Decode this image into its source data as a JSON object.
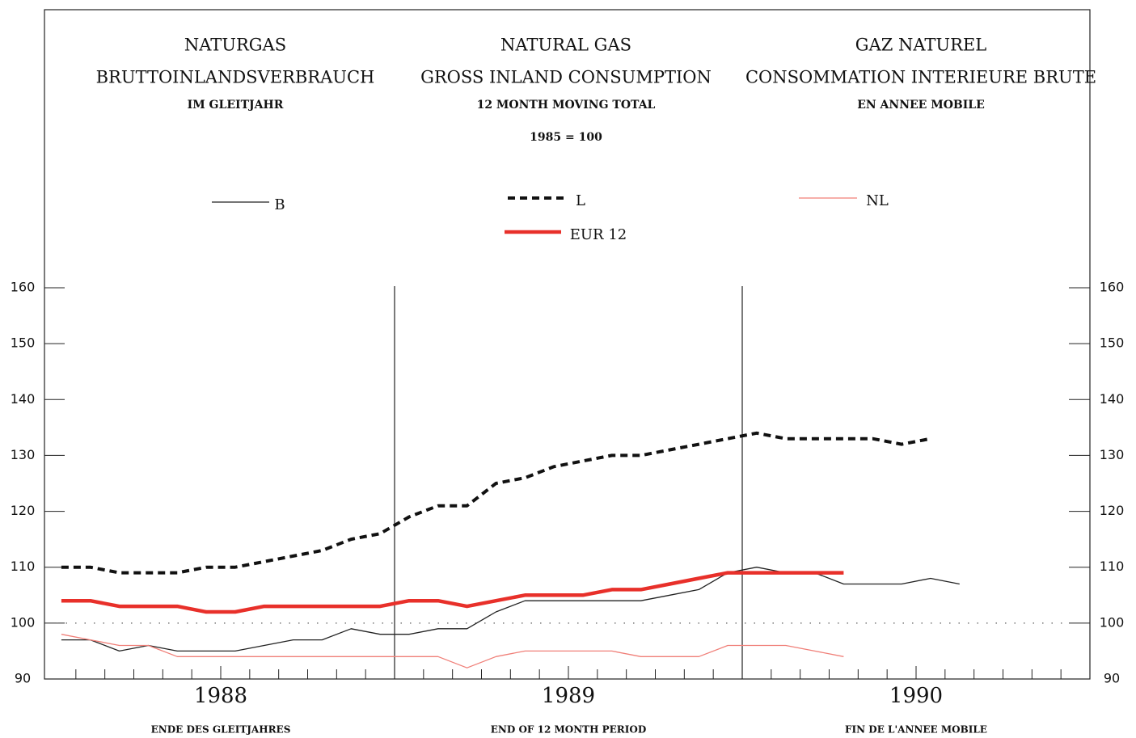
{
  "chart_data": {
    "type": "line",
    "title_columns": [
      [
        "NATURGAS",
        "BRUTTOINLANDSVERBRAUCH",
        "IM GLEITJAHR"
      ],
      [
        "NATURAL GAS",
        "GROSS INLAND CONSUMPTION",
        "12 MONTH MOVING TOTAL"
      ],
      [
        "GAZ NATUREL",
        "CONSOMMATION INTERIEURE BRUTE",
        "EN ANNEE MOBILE"
      ]
    ],
    "subtitle": "1985 = 100",
    "categories": [
      null,
      null,
      null,
      null,
      null,
      null,
      null,
      null,
      null,
      null,
      null,
      null,
      null,
      null,
      null,
      null,
      null,
      null,
      null,
      null,
      null,
      null,
      null,
      null,
      null,
      null,
      null,
      null,
      null,
      null,
      null,
      null,
      null,
      null,
      null,
      null
    ],
    "x_groups": [
      "1988",
      "1989",
      "1990"
    ],
    "x_label_columns": [
      "ENDE DES GLEITJAHRES",
      "END OF 12 MONTH PERIOD",
      "FIN DE L'ANNEE MOBILE"
    ],
    "ylim": [
      90,
      160
    ],
    "yticks": [
      90,
      100,
      110,
      120,
      130,
      140,
      150,
      160
    ],
    "reference_line": 100,
    "series": [
      {
        "name": "B",
        "color": "#222222",
        "line_style": "thin",
        "values": [
          97,
          97,
          95,
          96,
          95,
          95,
          95,
          96,
          97,
          97,
          99,
          98,
          98,
          99,
          99,
          102,
          104,
          104,
          104,
          104,
          104,
          105,
          106,
          109,
          110,
          109,
          109,
          107,
          107,
          107,
          108,
          107,
          null,
          null,
          null,
          null
        ]
      },
      {
        "name": "L",
        "color": "#111111",
        "line_style": "dashed",
        "values": [
          110,
          110,
          109,
          109,
          109,
          110,
          110,
          111,
          112,
          113,
          115,
          116,
          119,
          121,
          121,
          125,
          126,
          128,
          129,
          130,
          130,
          131,
          132,
          133,
          134,
          133,
          133,
          133,
          133,
          132,
          133,
          null,
          null,
          null,
          null,
          null
        ]
      },
      {
        "name": "NL",
        "color": "#f07f78",
        "line_style": "thin",
        "values": [
          98,
          97,
          96,
          96,
          94,
          94,
          94,
          94,
          94,
          94,
          94,
          94,
          94,
          94,
          92,
          94,
          95,
          95,
          95,
          95,
          94,
          94,
          94,
          96,
          96,
          96,
          95,
          94,
          null,
          null,
          null,
          null,
          null,
          null,
          null,
          null
        ]
      },
      {
        "name": "EUR 12",
        "color": "#e8302a",
        "line_style": "thick",
        "values": [
          104,
          104,
          103,
          103,
          103,
          102,
          102,
          103,
          103,
          103,
          103,
          103,
          104,
          104,
          103,
          104,
          105,
          105,
          105,
          106,
          106,
          107,
          108,
          109,
          109,
          109,
          109,
          109,
          null,
          null,
          null,
          null,
          null,
          null,
          null,
          null
        ]
      }
    ]
  }
}
